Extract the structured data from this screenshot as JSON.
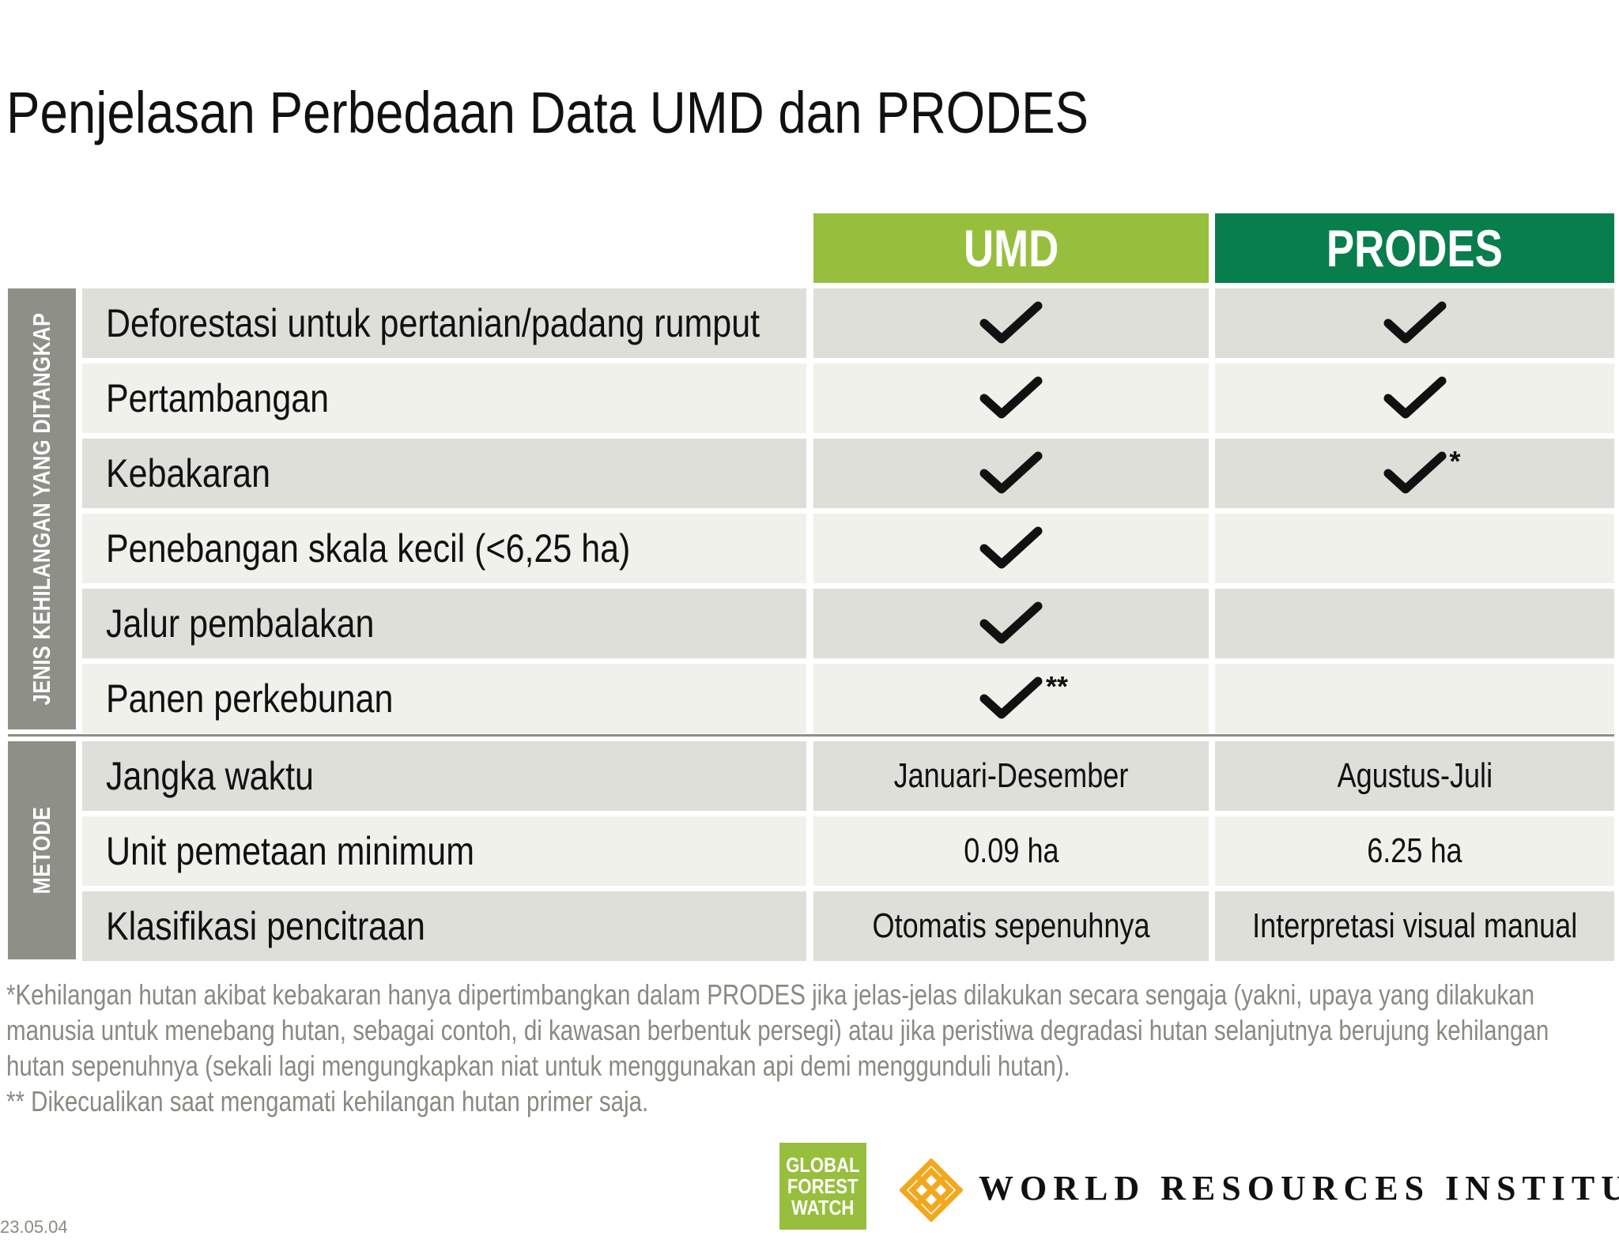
{
  "title": "Penjelasan Perbedaan Data UMD dan PRODES",
  "columns": {
    "umd": "UMD",
    "prodes": "PRODES"
  },
  "sections": {
    "loss_types": "JENIS KEHILANGAN YANG DITANGKAP",
    "method": "METODE"
  },
  "loss_rows": [
    {
      "label": "Deforestasi untuk pertanian/padang rumput",
      "umd": true,
      "umd_mark": "",
      "prodes": true,
      "prodes_mark": ""
    },
    {
      "label": "Pertambangan",
      "umd": true,
      "umd_mark": "",
      "prodes": true,
      "prodes_mark": ""
    },
    {
      "label": "Kebakaran",
      "umd": true,
      "umd_mark": "",
      "prodes": true,
      "prodes_mark": "*"
    },
    {
      "label": "Penebangan skala kecil (<6,25 ha)",
      "umd": true,
      "umd_mark": "",
      "prodes": false,
      "prodes_mark": ""
    },
    {
      "label": "Jalur pembalakan",
      "umd": true,
      "umd_mark": "",
      "prodes": false,
      "prodes_mark": ""
    },
    {
      "label": "Panen perkebunan",
      "umd": true,
      "umd_mark": "**",
      "prodes": false,
      "prodes_mark": ""
    }
  ],
  "method_rows": [
    {
      "label": "Jangka waktu",
      "umd": "Januari-Desember",
      "prodes": "Agustus-Juli"
    },
    {
      "label": "Unit pemetaan minimum",
      "umd": "0.09 ha",
      "prodes": "6.25 ha"
    },
    {
      "label": "Klasifikasi pencitraan",
      "umd": "Otomatis sepenuhnya",
      "prodes": "Interpretasi visual manual"
    }
  ],
  "footnotes": {
    "fire": "*Kehilangan hutan akibat kebakaran hanya dipertimbangkan dalam PRODES jika jelas-jelas dilakukan secara sengaja (yakni, upaya yang dilakukan manusia untuk menebang hutan, sebagai contoh, di kawasan berbentuk persegi) atau jika peristiwa degradasi hutan selanjutnya berujung kehilangan hutan sepenuhnya (sekali lagi mengungkapkan niat untuk menggunakan api demi menggunduli hutan).",
    "plantation": "** Dikecualikan saat mengamati kehilangan hutan primer saja."
  },
  "logos": {
    "gfw_lines": [
      "GLOBAL",
      "FOREST",
      "WATCH"
    ],
    "wri": "WORLD RESOURCES INSTITUTE"
  },
  "date": "23.05.04",
  "colors": {
    "umd_green": "#97bf3d",
    "prodes_green": "#077e4c",
    "sidebar_gray": "#8e8f87",
    "row_dark": "#dedfd9",
    "row_light": "#f1f1ec",
    "wri_orange": "#f2a81d"
  }
}
